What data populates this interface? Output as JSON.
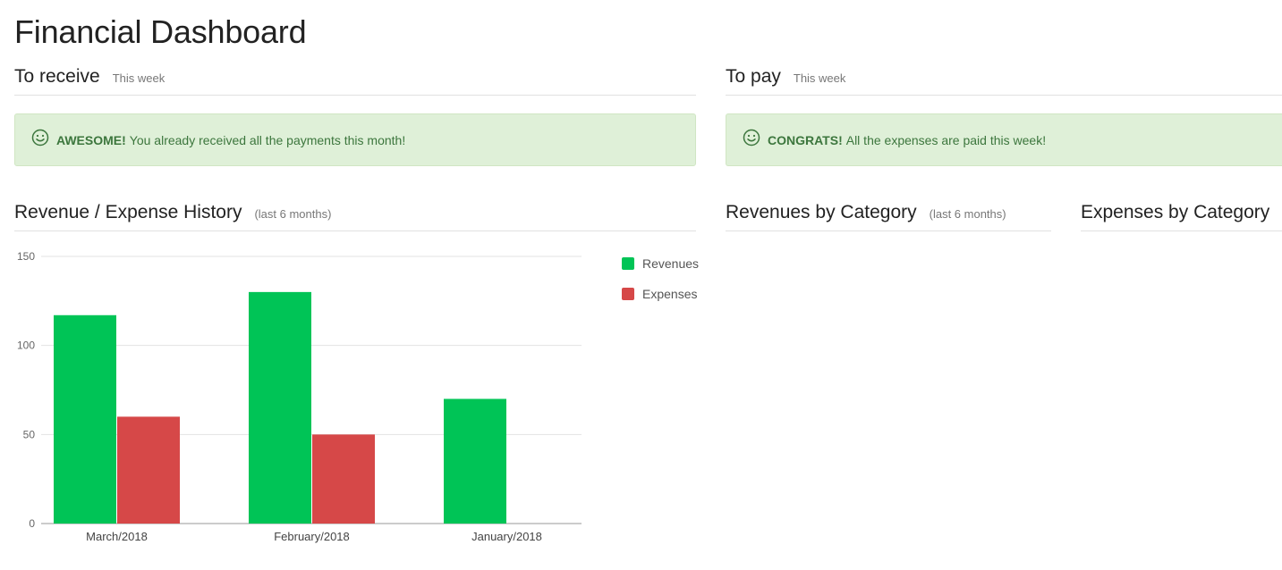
{
  "page": {
    "title": "Financial Dashboard"
  },
  "to_receive": {
    "title": "To receive",
    "period": "This week",
    "alert_strong": "AWESOME!",
    "alert_text": "You already received all the payments this month!"
  },
  "to_pay": {
    "title": "To pay",
    "period": "This week",
    "alert_strong": "CONGRATS!",
    "alert_text": "All the expenses are paid this week!"
  },
  "history": {
    "title": "Revenue / Expense History",
    "period": "(last 6 months)"
  },
  "revenues_by_category": {
    "title": "Revenues by Category",
    "period": "(last 6 months)"
  },
  "expenses_by_category": {
    "title": "Expenses by Category"
  },
  "icons": {
    "alert": "smile-icon"
  },
  "colors": {
    "revenues": "#00c456",
    "expenses": "#d64848",
    "alert_bg": "#dff0d8",
    "alert_text": "#3c763d"
  },
  "chart_data": {
    "type": "bar",
    "title": "",
    "xlabel": "",
    "ylabel": "",
    "categories": [
      "March/2018",
      "February/2018",
      "January/2018"
    ],
    "series": [
      {
        "name": "Revenues",
        "values": [
          117,
          130,
          70
        ]
      },
      {
        "name": "Expenses",
        "values": [
          60,
          50,
          0
        ]
      }
    ],
    "ylim": [
      0,
      150
    ],
    "yticks": [
      0,
      50,
      100,
      150
    ],
    "grid": true,
    "legend": "right"
  }
}
